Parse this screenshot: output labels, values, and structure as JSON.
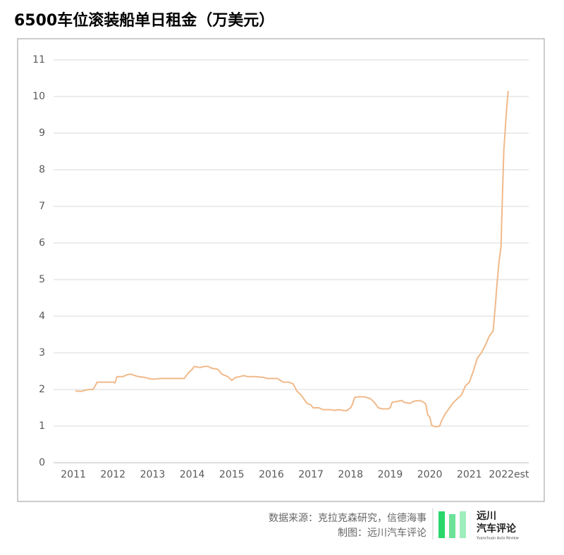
{
  "chart_data": {
    "type": "line",
    "title": "6500车位滚装船单日租金（万美元）",
    "color": "#f0b98a",
    "grid": true,
    "xlim": [
      2010.5,
      2022.5
    ],
    "xticks": [
      2011,
      2012,
      2013,
      2014,
      2015,
      2016,
      2017,
      2018,
      2019,
      2020,
      2021,
      {
        "value": 2022,
        "label": "2022est"
      }
    ],
    "ylim": [
      0,
      11
    ],
    "yticks": [
      0,
      1,
      2,
      3,
      4,
      5,
      6,
      7,
      8,
      9,
      10,
      11
    ],
    "x": [
      2011.05,
      2011.2,
      2011.3,
      2011.4,
      2011.5,
      2011.6,
      2011.8,
      2012.0,
      2012.05,
      2012.1,
      2012.25,
      2012.35,
      2012.45,
      2012.55,
      2012.65,
      2012.8,
      2012.9,
      2013.0,
      2013.2,
      2013.5,
      2013.7,
      2013.8,
      2013.9,
      2014.0,
      2014.05,
      2014.2,
      2014.3,
      2014.4,
      2014.5,
      2014.65,
      2014.75,
      2014.9,
      2015.0,
      2015.1,
      2015.2,
      2015.3,
      2015.4,
      2015.6,
      2015.8,
      2015.9,
      2016.15,
      2016.3,
      2016.45,
      2016.55,
      2016.65,
      2016.75,
      2016.9,
      2017.0,
      2017.05,
      2017.2,
      2017.3,
      2017.5,
      2017.6,
      2017.7,
      2017.8,
      2017.9,
      2018.0,
      2018.05,
      2018.1,
      2018.2,
      2018.35,
      2018.5,
      2018.6,
      2018.7,
      2018.8,
      2018.95,
      2019.0,
      2019.05,
      2019.3,
      2019.35,
      2019.5,
      2019.6,
      2019.75,
      2019.85,
      2019.9,
      2019.95,
      2020.0,
      2020.05,
      2020.15,
      2020.25,
      2020.3,
      2020.4,
      2020.5,
      2020.6,
      2020.7,
      2020.8,
      2020.9,
      2021.0,
      2021.1,
      2021.2,
      2021.3,
      2021.4,
      2021.5,
      2021.6,
      2021.65,
      2021.7,
      2021.75,
      2021.8,
      2021.83,
      2021.87,
      2021.93,
      2021.98
    ],
    "values": [
      1.96,
      1.95,
      1.98,
      2.0,
      2.0,
      2.2,
      2.2,
      2.2,
      2.18,
      2.35,
      2.35,
      2.4,
      2.42,
      2.38,
      2.35,
      2.33,
      2.3,
      2.28,
      2.3,
      2.3,
      2.3,
      2.3,
      2.45,
      2.55,
      2.63,
      2.6,
      2.63,
      2.63,
      2.58,
      2.55,
      2.42,
      2.35,
      2.25,
      2.33,
      2.35,
      2.38,
      2.35,
      2.35,
      2.33,
      2.3,
      2.3,
      2.2,
      2.2,
      2.15,
      1.95,
      1.85,
      1.62,
      1.58,
      1.5,
      1.5,
      1.45,
      1.45,
      1.43,
      1.45,
      1.43,
      1.42,
      1.5,
      1.6,
      1.78,
      1.8,
      1.8,
      1.75,
      1.65,
      1.5,
      1.47,
      1.47,
      1.5,
      1.65,
      1.7,
      1.65,
      1.62,
      1.68,
      1.7,
      1.65,
      1.6,
      1.3,
      1.25,
      1.02,
      0.98,
      1.0,
      1.15,
      1.35,
      1.5,
      1.65,
      1.75,
      1.85,
      2.1,
      2.2,
      2.5,
      2.85,
      3.0,
      3.2,
      3.45,
      3.6,
      4.2,
      4.9,
      5.5,
      5.9,
      7.1,
      8.5,
      9.5,
      10.15
    ]
  },
  "footer": {
    "source": "数据来源：克拉克森研究，信德海事",
    "credit": "制图：远川汽车评论",
    "logo": {
      "name": "远川",
      "sub": "汽车评论",
      "en": "Yuanchuan Auto Review"
    }
  }
}
